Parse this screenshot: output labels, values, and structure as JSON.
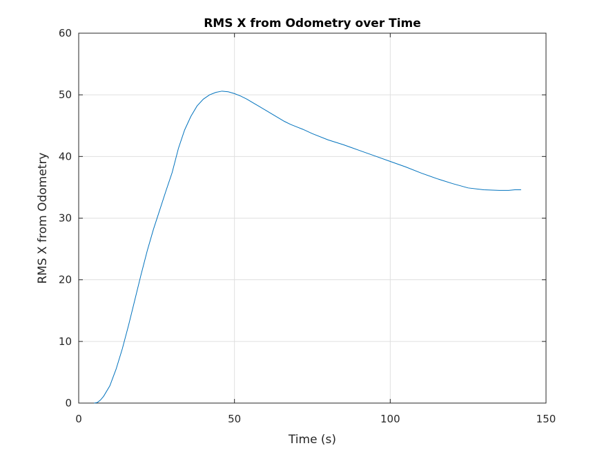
{
  "chart_data": {
    "type": "line",
    "title": "RMS X from Odometry over Time",
    "xlabel": "Time (s)",
    "ylabel": "RMS X from Odometry",
    "xlim": [
      0,
      150
    ],
    "ylim": [
      0,
      60
    ],
    "grid": true,
    "x_ticks": [
      0,
      50,
      100,
      150
    ],
    "y_ticks": [
      0,
      10,
      20,
      30,
      40,
      50,
      60
    ],
    "line_color": "#0072BD",
    "series": [
      {
        "x": [
          5,
          6,
          7,
          8,
          10,
          12,
          14,
          16,
          18,
          20,
          22,
          24,
          26,
          28,
          30,
          32,
          34,
          36,
          38,
          40,
          42,
          44,
          46,
          48,
          50,
          52,
          54,
          56,
          58,
          60,
          62,
          64,
          66,
          68,
          70,
          72,
          75,
          80,
          85,
          90,
          95,
          100,
          105,
          110,
          115,
          120,
          125,
          130,
          135,
          138,
          140,
          142
        ],
        "y": [
          0,
          0.1,
          0.5,
          1.1,
          2.8,
          5.5,
          8.8,
          12.6,
          16.7,
          20.8,
          24.7,
          28.2,
          31.3,
          34.4,
          37.4,
          41.3,
          44.3,
          46.5,
          48.2,
          49.3,
          50.0,
          50.4,
          50.6,
          50.5,
          50.2,
          49.8,
          49.3,
          48.7,
          48.1,
          47.5,
          46.9,
          46.3,
          45.7,
          45.2,
          44.8,
          44.4,
          43.7,
          42.7,
          41.9,
          41.0,
          40.1,
          39.2,
          38.3,
          37.3,
          36.4,
          35.6,
          34.9,
          34.6,
          34.5,
          34.5,
          34.6,
          34.6
        ]
      }
    ]
  }
}
